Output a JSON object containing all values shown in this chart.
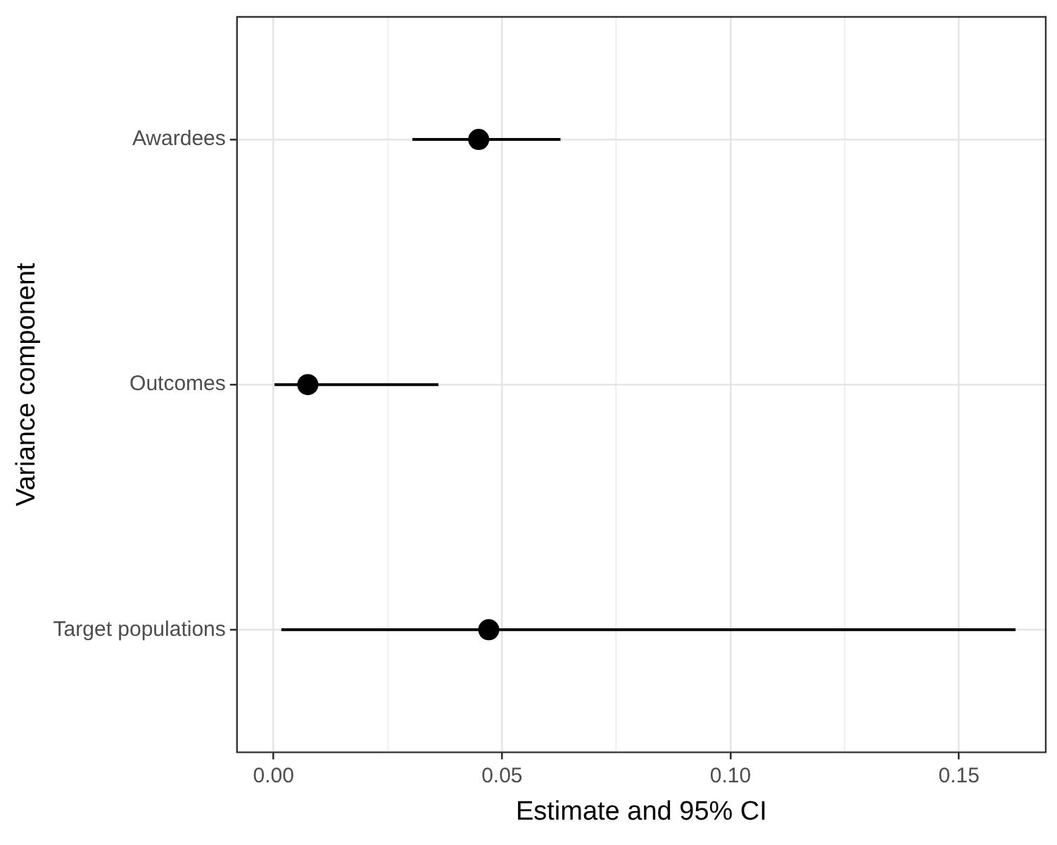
{
  "chart_data": {
    "type": "scatter",
    "orientation": "horizontal",
    "categories": [
      "Awardees",
      "Outcomes",
      "Target populations"
    ],
    "values": [
      0.0449,
      0.0075,
      0.0471
    ],
    "errors": [
      [
        0.0304,
        0.0628
      ],
      [
        0.0002,
        0.0361
      ],
      [
        0.0017,
        0.1624
      ]
    ],
    "color": "#000000",
    "marker": "circle",
    "xlim": [
      -0.008,
      0.169
    ],
    "xticks": [
      {
        "value": 0,
        "label": "0.00"
      },
      {
        "value": 0.025,
        "label": null
      },
      {
        "value": 0.05,
        "label": "0.05"
      },
      {
        "value": 0.075,
        "label": null
      },
      {
        "value": 0.1,
        "label": "0.10"
      },
      {
        "value": 0.125,
        "label": null
      },
      {
        "value": 0.15,
        "label": "0.15"
      }
    ],
    "xlabel": "Estimate and 95% CI",
    "ylabel": "Variance component",
    "grid": true
  }
}
